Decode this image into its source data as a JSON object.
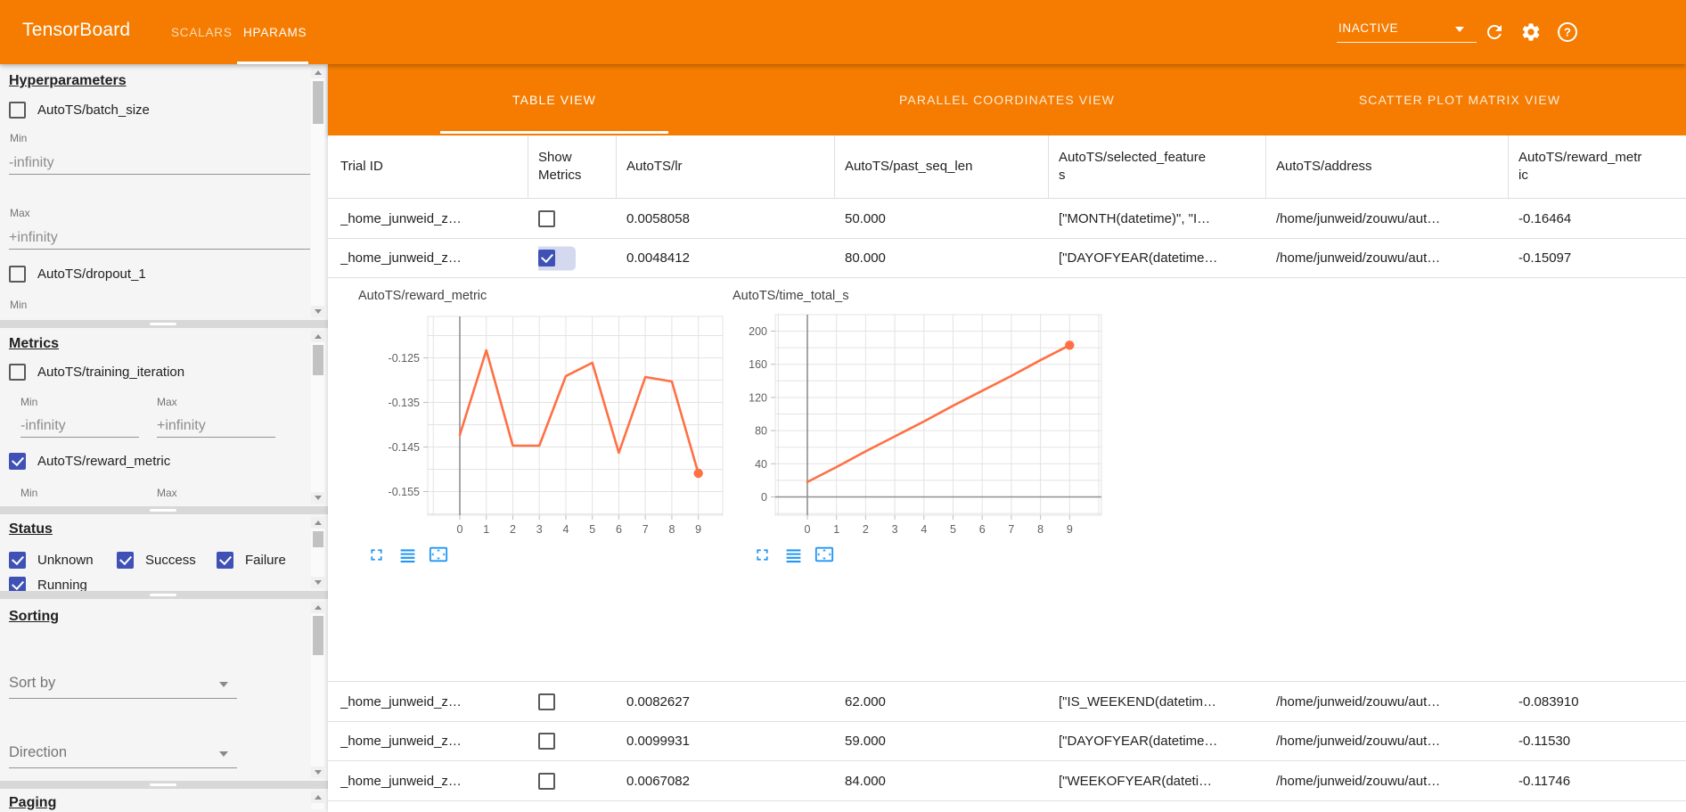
{
  "header": {
    "logo": "TensorBoard",
    "nav_tabs": [
      {
        "label": "SCALARS",
        "active": false
      },
      {
        "label": "HPARAMS",
        "active": true
      }
    ],
    "run_status": "INACTIVE",
    "icons": {
      "dropdown": "dropdown-arrow-icon",
      "refresh": "refresh-icon",
      "settings": "gear-icon",
      "help": "help-circle-icon"
    }
  },
  "colors": {
    "accent_orange": "#f57c00",
    "chart_line": "#ff7043",
    "checkbox_blue": "#3f51b5",
    "icon_blue": "#2196f3"
  },
  "sidebar": {
    "hyperparameters": {
      "title": "Hyperparameters",
      "min_label": "Min",
      "max_label": "Max",
      "min_placeholder": "-infinity",
      "max_placeholder": "+infinity",
      "params": [
        {
          "label": "AutoTS/batch_size",
          "checked": false
        },
        {
          "label": "AutoTS/dropout_1",
          "checked": false
        }
      ]
    },
    "metrics": {
      "title": "Metrics",
      "min_label": "Min",
      "max_label": "Max",
      "min_placeholder": "-infinity",
      "max_placeholder": "+infinity",
      "items": [
        {
          "label": "AutoTS/training_iteration",
          "checked": false
        },
        {
          "label": "AutoTS/reward_metric",
          "checked": true
        }
      ]
    },
    "status": {
      "title": "Status",
      "options": [
        {
          "label": "Unknown",
          "checked": true
        },
        {
          "label": "Success",
          "checked": true
        },
        {
          "label": "Failure",
          "checked": true
        },
        {
          "label": "Running",
          "checked": true
        }
      ]
    },
    "sorting": {
      "title": "Sorting",
      "sort_by_placeholder": "Sort by",
      "direction_placeholder": "Direction"
    },
    "paging": {
      "title": "Paging"
    }
  },
  "main": {
    "view_tabs": [
      {
        "label": "TABLE VIEW",
        "active": true
      },
      {
        "label": "PARALLEL COORDINATES VIEW",
        "active": false
      },
      {
        "label": "SCATTER PLOT MATRIX VIEW",
        "active": false
      }
    ],
    "table": {
      "columns": [
        "Trial ID",
        "Show Metrics",
        "AutoTS/lr",
        "AutoTS/past_seq_len",
        "AutoTS/selected_features",
        "AutoTS/address",
        "AutoTS/reward_metric"
      ],
      "rows": [
        {
          "trial_id": "_home_junweid_z…",
          "show_metrics": false,
          "lr": "0.0058058",
          "past_seq_len": "50.000",
          "selected_features": "[\"MONTH(datetime)\", \"I…",
          "address": "/home/junweid/zouwu/aut…",
          "reward_metric": "-0.16464"
        },
        {
          "trial_id": "_home_junweid_z…",
          "show_metrics": true,
          "lr": "0.0048412",
          "past_seq_len": "80.000",
          "selected_features": "[\"DAYOFYEAR(datetime…",
          "address": "/home/junweid/zouwu/aut…",
          "reward_metric": "-0.15097"
        },
        {
          "trial_id": "_home_junweid_z…",
          "show_metrics": false,
          "lr": "0.0082627",
          "past_seq_len": "62.000",
          "selected_features": "[\"IS_WEEKEND(datetim…",
          "address": "/home/junweid/zouwu/aut…",
          "reward_metric": "-0.083910"
        },
        {
          "trial_id": "_home_junweid_z…",
          "show_metrics": false,
          "lr": "0.0099931",
          "past_seq_len": "59.000",
          "selected_features": "[\"DAYOFYEAR(datetime…",
          "address": "/home/junweid/zouwu/aut…",
          "reward_metric": "-0.11530"
        },
        {
          "trial_id": "_home_junweid_z…",
          "show_metrics": false,
          "lr": "0.0067082",
          "past_seq_len": "84.000",
          "selected_features": "[\"WEEKOFYEAR(dateti…",
          "address": "/home/junweid/zouwu/aut…",
          "reward_metric": "-0.11746"
        }
      ]
    },
    "chart_action_icons": [
      "fullscreen-icon",
      "list-icon",
      "pan-icon"
    ]
  },
  "chart_data": [
    {
      "type": "line",
      "title": "AutoTS/reward_metric",
      "x": [
        0,
        1,
        2,
        3,
        4,
        5,
        6,
        7,
        8,
        9
      ],
      "values": [
        -0.1423,
        -0.1233,
        -0.1447,
        -0.1447,
        -0.1291,
        -0.1261,
        -0.1463,
        -0.1293,
        -0.1303,
        -0.1509
      ],
      "yticks": [
        -0.125,
        -0.135,
        -0.145,
        -0.155
      ],
      "ytick_labels": [
        "-0.125",
        "-0.135",
        "-0.145",
        "-0.155"
      ],
      "ylim": [
        -0.16,
        -0.1157
      ],
      "xlabel": "",
      "ylabel": "",
      "grid": true,
      "legend": "none",
      "color": "#ff7043",
      "end_marker": true
    },
    {
      "type": "line",
      "title": "AutoTS/time_total_s",
      "x": [
        0,
        1,
        2,
        3,
        4,
        5,
        6,
        7,
        8,
        9
      ],
      "values": [
        18,
        36,
        55,
        73,
        91,
        110,
        128,
        146,
        165,
        183
      ],
      "yticks": [
        0,
        40,
        80,
        120,
        160,
        200
      ],
      "ytick_labels": [
        "0",
        "40",
        "80",
        "120",
        "160",
        "200"
      ],
      "ylim": [
        -22,
        220
      ],
      "xlabel": "",
      "ylabel": "",
      "grid": true,
      "legend": "none",
      "color": "#ff7043",
      "end_marker": true
    }
  ]
}
